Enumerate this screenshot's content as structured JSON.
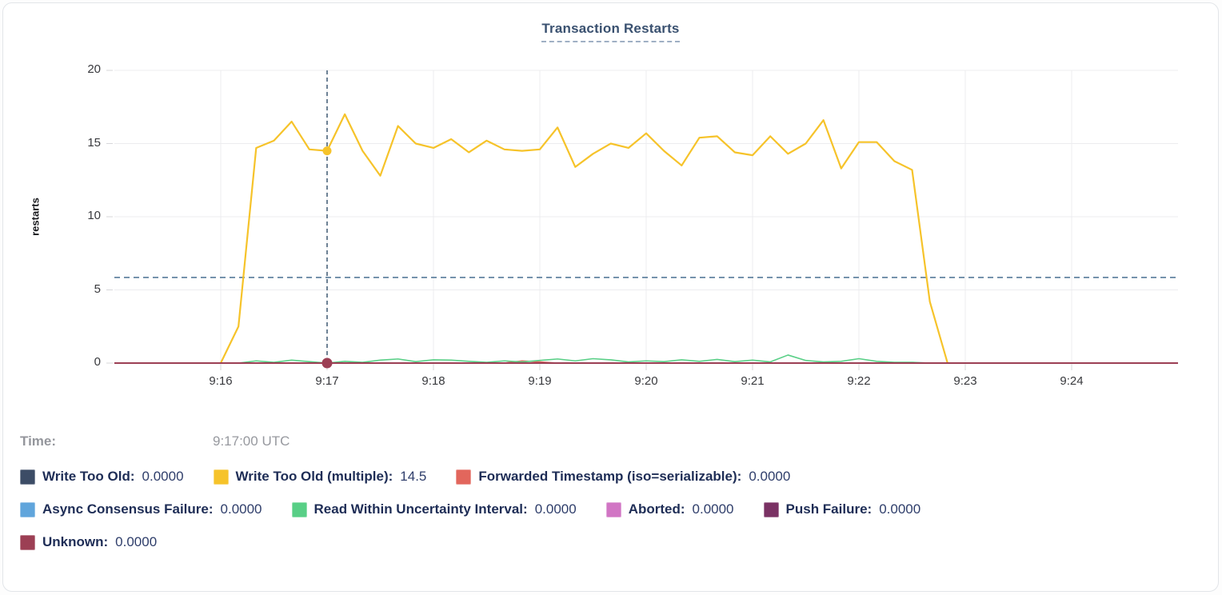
{
  "hover": {
    "label": "Time:",
    "value": "9:17:00 UTC"
  },
  "legend": {
    "rows": [
      [
        {
          "label": "Write Too Old:",
          "value": "0.0000",
          "color": "#3c4c66"
        },
        {
          "label": "Write Too Old (multiple):",
          "value": "14.5",
          "color": "#f6c32a"
        },
        {
          "label": "Forwarded Timestamp (iso=serializable):",
          "value": "0.0000",
          "color": "#e2665c"
        }
      ],
      [
        {
          "label": "Async Consensus Failure:",
          "value": "0.0000",
          "color": "#60a5dc"
        },
        {
          "label": "Read Within Uncertainty Interval:",
          "value": "0.0000",
          "color": "#58cf86"
        },
        {
          "label": "Aborted:",
          "value": "0.0000",
          "color": "#d175c4"
        },
        {
          "label": "Push Failure:",
          "value": "0.0000",
          "color": "#7a3264"
        }
      ],
      [
        {
          "label": "Unknown:",
          "value": "0.0000",
          "color": "#9c3f54"
        }
      ]
    ]
  },
  "chart_data": {
    "type": "line",
    "title": "Transaction Restarts",
    "ylabel": "restarts",
    "ylim": [
      0,
      20
    ],
    "y_ticks": [
      0,
      5,
      10,
      15,
      20
    ],
    "x_ticks": [
      "9:16",
      "9:17",
      "9:18",
      "9:19",
      "9:20",
      "9:21",
      "9:22",
      "9:23",
      "9:24"
    ],
    "x_domain": [
      "9:15:00",
      "9:25:00"
    ],
    "grid": true,
    "legend_position": "bottom",
    "reference_line": 5.85,
    "crosshair": {
      "time": "9:17:00 UTC",
      "seconds_after_916": 60
    },
    "x_seconds": [
      0,
      10,
      20,
      30,
      40,
      50,
      60,
      70,
      80,
      90,
      100,
      110,
      120,
      130,
      140,
      150,
      160,
      170,
      180,
      190,
      200,
      210,
      220,
      230,
      240,
      250,
      260,
      270,
      280,
      290,
      300,
      310,
      320,
      330,
      340,
      350,
      360,
      370,
      380,
      390,
      400,
      410
    ],
    "series": [
      {
        "name": "Write Too Old",
        "color": "#3c4c66",
        "constant": 0
      },
      {
        "name": "Write Too Old (multiple)",
        "color": "#f6c32a",
        "values": [
          0,
          2.5,
          14.7,
          15.2,
          16.5,
          14.6,
          14.5,
          17,
          14.5,
          12.8,
          16.2,
          15,
          14.7,
          15.3,
          14.4,
          15.2,
          14.6,
          14.5,
          14.6,
          16.1,
          13.4,
          14.3,
          15,
          14.7,
          15.7,
          14.5,
          13.5,
          15.4,
          15.5,
          14.4,
          14.2,
          15.5,
          14.3,
          15,
          16.6,
          13.3,
          15.1,
          15.1,
          13.8,
          13.2,
          4.2,
          0
        ]
      },
      {
        "name": "Forwarded Timestamp (iso=serializable)",
        "color": "#e2665c",
        "values": [
          0,
          0,
          0,
          0,
          0,
          0,
          0,
          0,
          0,
          0,
          0,
          0,
          0,
          0,
          0,
          0,
          0,
          0.15,
          0.08,
          0,
          0,
          0,
          0,
          0,
          0,
          0,
          0,
          0,
          0,
          0,
          0,
          0,
          0,
          0,
          0,
          0,
          0,
          0,
          0,
          0,
          0,
          0
        ]
      },
      {
        "name": "Async Consensus Failure",
        "color": "#60a5dc",
        "constant": 0
      },
      {
        "name": "Read Within Uncertainty Interval",
        "color": "#58cf86",
        "values": [
          0,
          0,
          0.15,
          0.05,
          0.2,
          0.1,
          0,
          0.12,
          0.05,
          0.2,
          0.28,
          0.1,
          0.22,
          0.2,
          0.12,
          0.05,
          0.15,
          0.08,
          0.18,
          0.28,
          0.15,
          0.3,
          0.22,
          0.08,
          0.15,
          0.1,
          0.22,
          0.12,
          0.25,
          0.1,
          0.2,
          0.08,
          0.55,
          0.18,
          0.08,
          0.12,
          0.3,
          0.12,
          0.05,
          0.05,
          0,
          0
        ]
      },
      {
        "name": "Aborted",
        "color": "#d175c4",
        "constant": 0
      },
      {
        "name": "Push Failure",
        "color": "#7a3264",
        "constant": 0
      },
      {
        "name": "Unknown",
        "color": "#9c3f54",
        "constant": 0
      }
    ],
    "hover_dots": [
      {
        "series": "Write Too Old (multiple)",
        "value": 14.5,
        "color": "#f6c32a"
      },
      {
        "series": "Unknown",
        "value": 0,
        "color": "#9c3f54"
      }
    ]
  }
}
